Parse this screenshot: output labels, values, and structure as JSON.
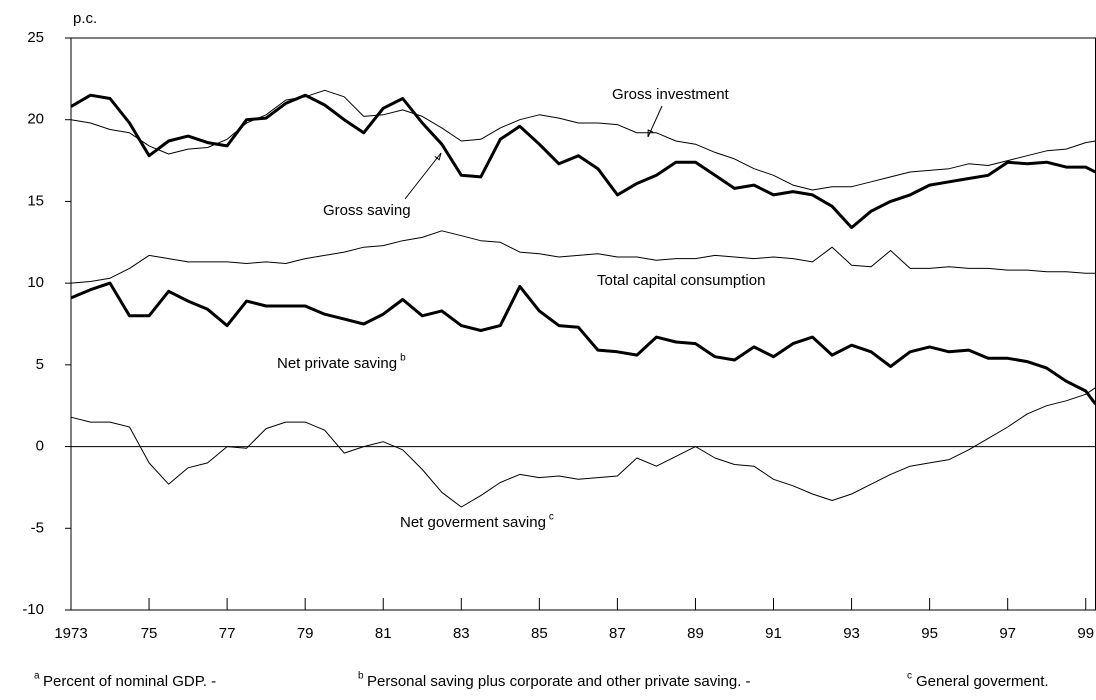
{
  "chart_data": {
    "type": "line",
    "y_label": "p.c.",
    "xlim": [
      1973,
      1999.25
    ],
    "ylim": [
      -10,
      25
    ],
    "yticks": [
      25,
      20,
      15,
      10,
      5,
      0,
      -5,
      -10
    ],
    "xticks": [
      {
        "value": 1973,
        "label": "1973"
      },
      {
        "value": 1975,
        "label": "75"
      },
      {
        "value": 1977,
        "label": "77"
      },
      {
        "value": 1979,
        "label": "79"
      },
      {
        "value": 1981,
        "label": "81"
      },
      {
        "value": 1983,
        "label": "83"
      },
      {
        "value": 1985,
        "label": "85"
      },
      {
        "value": 1987,
        "label": "87"
      },
      {
        "value": 1989,
        "label": "89"
      },
      {
        "value": 1991,
        "label": "91"
      },
      {
        "value": 1993,
        "label": "93"
      },
      {
        "value": 1995,
        "label": "95"
      },
      {
        "value": 1997,
        "label": "97"
      },
      {
        "value": 1999,
        "label": "99"
      }
    ],
    "zero_line": true,
    "x": [
      1973,
      1973.5,
      1974,
      1974.5,
      1975,
      1975.5,
      1976,
      1976.5,
      1977,
      1977.5,
      1978,
      1978.5,
      1979,
      1979.5,
      1980,
      1980.5,
      1981,
      1981.5,
      1982,
      1982.5,
      1983,
      1983.5,
      1984,
      1984.5,
      1985,
      1985.5,
      1986,
      1986.5,
      1987,
      1987.5,
      1988,
      1988.5,
      1989,
      1989.5,
      1990,
      1990.5,
      1991,
      1991.5,
      1992,
      1992.5,
      1993,
      1993.5,
      1994,
      1994.5,
      1995,
      1995.5,
      1996,
      1996.5,
      1997,
      1997.5,
      1998,
      1998.5,
      1999,
      1999.25
    ],
    "series": [
      {
        "name": "Gross saving",
        "color": "#000000",
        "width": 3,
        "values": [
          20.8,
          21.5,
          21.3,
          19.8,
          17.8,
          18.7,
          19.0,
          18.6,
          18.4,
          20.0,
          20.1,
          21.0,
          21.5,
          20.9,
          20.0,
          19.2,
          20.7,
          21.3,
          19.8,
          18.5,
          16.6,
          16.5,
          18.8,
          19.6,
          18.5,
          17.3,
          17.8,
          17.0,
          15.4,
          16.1,
          16.6,
          17.4,
          17.4,
          16.6,
          15.8,
          16.0,
          15.4,
          15.6,
          15.4,
          14.7,
          13.4,
          14.4,
          15.0,
          15.4,
          16.0,
          16.2,
          16.4,
          16.6,
          17.4,
          17.3,
          17.4,
          17.1,
          17.1,
          16.8
        ]
      },
      {
        "name": "Gross investment",
        "color": "#000000",
        "width": 1,
        "values": [
          20.0,
          19.8,
          19.4,
          19.2,
          18.4,
          17.9,
          18.2,
          18.3,
          18.8,
          19.8,
          20.3,
          21.2,
          21.4,
          21.8,
          21.4,
          20.2,
          20.3,
          20.6,
          20.2,
          19.5,
          18.7,
          18.8,
          19.5,
          20.0,
          20.3,
          20.1,
          19.8,
          19.8,
          19.7,
          19.2,
          19.2,
          18.7,
          18.5,
          18.0,
          17.6,
          17.0,
          16.6,
          16.0,
          15.7,
          15.9,
          15.9,
          16.2,
          16.5,
          16.8,
          16.9,
          17.0,
          17.3,
          17.2,
          17.5,
          17.8,
          18.1,
          18.2,
          18.6,
          18.7
        ]
      },
      {
        "name": "Total capital consumption",
        "color": "#000000",
        "width": 1,
        "values": [
          10.0,
          10.1,
          10.3,
          10.9,
          11.7,
          11.5,
          11.3,
          11.3,
          11.3,
          11.2,
          11.3,
          11.2,
          11.5,
          11.7,
          11.9,
          12.2,
          12.3,
          12.6,
          12.8,
          13.2,
          12.9,
          12.6,
          12.5,
          11.9,
          11.8,
          11.6,
          11.7,
          11.8,
          11.6,
          11.6,
          11.4,
          11.5,
          11.5,
          11.7,
          11.6,
          11.5,
          11.6,
          11.5,
          11.3,
          12.2,
          11.1,
          11.0,
          12.0,
          10.9,
          10.9,
          11.0,
          10.9,
          10.9,
          10.8,
          10.8,
          10.7,
          10.7,
          10.6,
          10.6
        ]
      },
      {
        "name": "Net private saving",
        "color": "#000000",
        "width": 3,
        "values": [
          9.1,
          9.6,
          10.0,
          8.0,
          8.0,
          9.5,
          8.9,
          8.4,
          7.4,
          8.9,
          8.6,
          8.6,
          8.6,
          8.1,
          7.8,
          7.5,
          8.1,
          9.0,
          8.0,
          8.3,
          7.4,
          7.1,
          7.4,
          9.8,
          8.3,
          7.4,
          7.3,
          5.9,
          5.8,
          5.6,
          6.7,
          6.4,
          6.3,
          5.5,
          5.3,
          6.1,
          5.5,
          6.3,
          6.7,
          5.6,
          6.2,
          5.8,
          4.9,
          5.8,
          6.1,
          5.8,
          5.9,
          5.4,
          5.4,
          5.2,
          4.8,
          4.0,
          3.4,
          2.6
        ]
      },
      {
        "name": "Net goverment saving",
        "color": "#000000",
        "width": 1,
        "values": [
          1.8,
          1.5,
          1.5,
          1.2,
          -1.0,
          -2.3,
          -1.3,
          -1.0,
          0.0,
          -0.1,
          1.1,
          1.5,
          1.5,
          1.0,
          -0.4,
          0.0,
          0.3,
          -0.2,
          -1.4,
          -2.8,
          -3.7,
          -3.0,
          -2.2,
          -1.7,
          -1.9,
          -1.8,
          -2.0,
          -1.9,
          -1.8,
          -0.7,
          -1.2,
          -0.6,
          0.0,
          -0.7,
          -1.1,
          -1.2,
          -2.0,
          -2.4,
          -2.9,
          -3.3,
          -2.9,
          -2.3,
          -1.7,
          -1.2,
          -1.0,
          -0.8,
          -0.2,
          0.5,
          1.2,
          2.0,
          2.5,
          2.8,
          3.2,
          3.6
        ]
      }
    ],
    "annotations": [
      {
        "text": "Gross investment"
      },
      {
        "text": "Gross saving"
      },
      {
        "text": "Total capital consumption"
      },
      {
        "text": "Net private saving",
        "sup": "b"
      },
      {
        "text": "Net goverment saving",
        "sup": "c"
      }
    ],
    "footnotes": [
      {
        "mark": "a",
        "text": "Percent of nominal GDP. -"
      },
      {
        "mark": "b",
        "text": "Personal saving plus corporate and other private saving. -"
      },
      {
        "mark": "c",
        "text": "General goverment."
      }
    ]
  }
}
